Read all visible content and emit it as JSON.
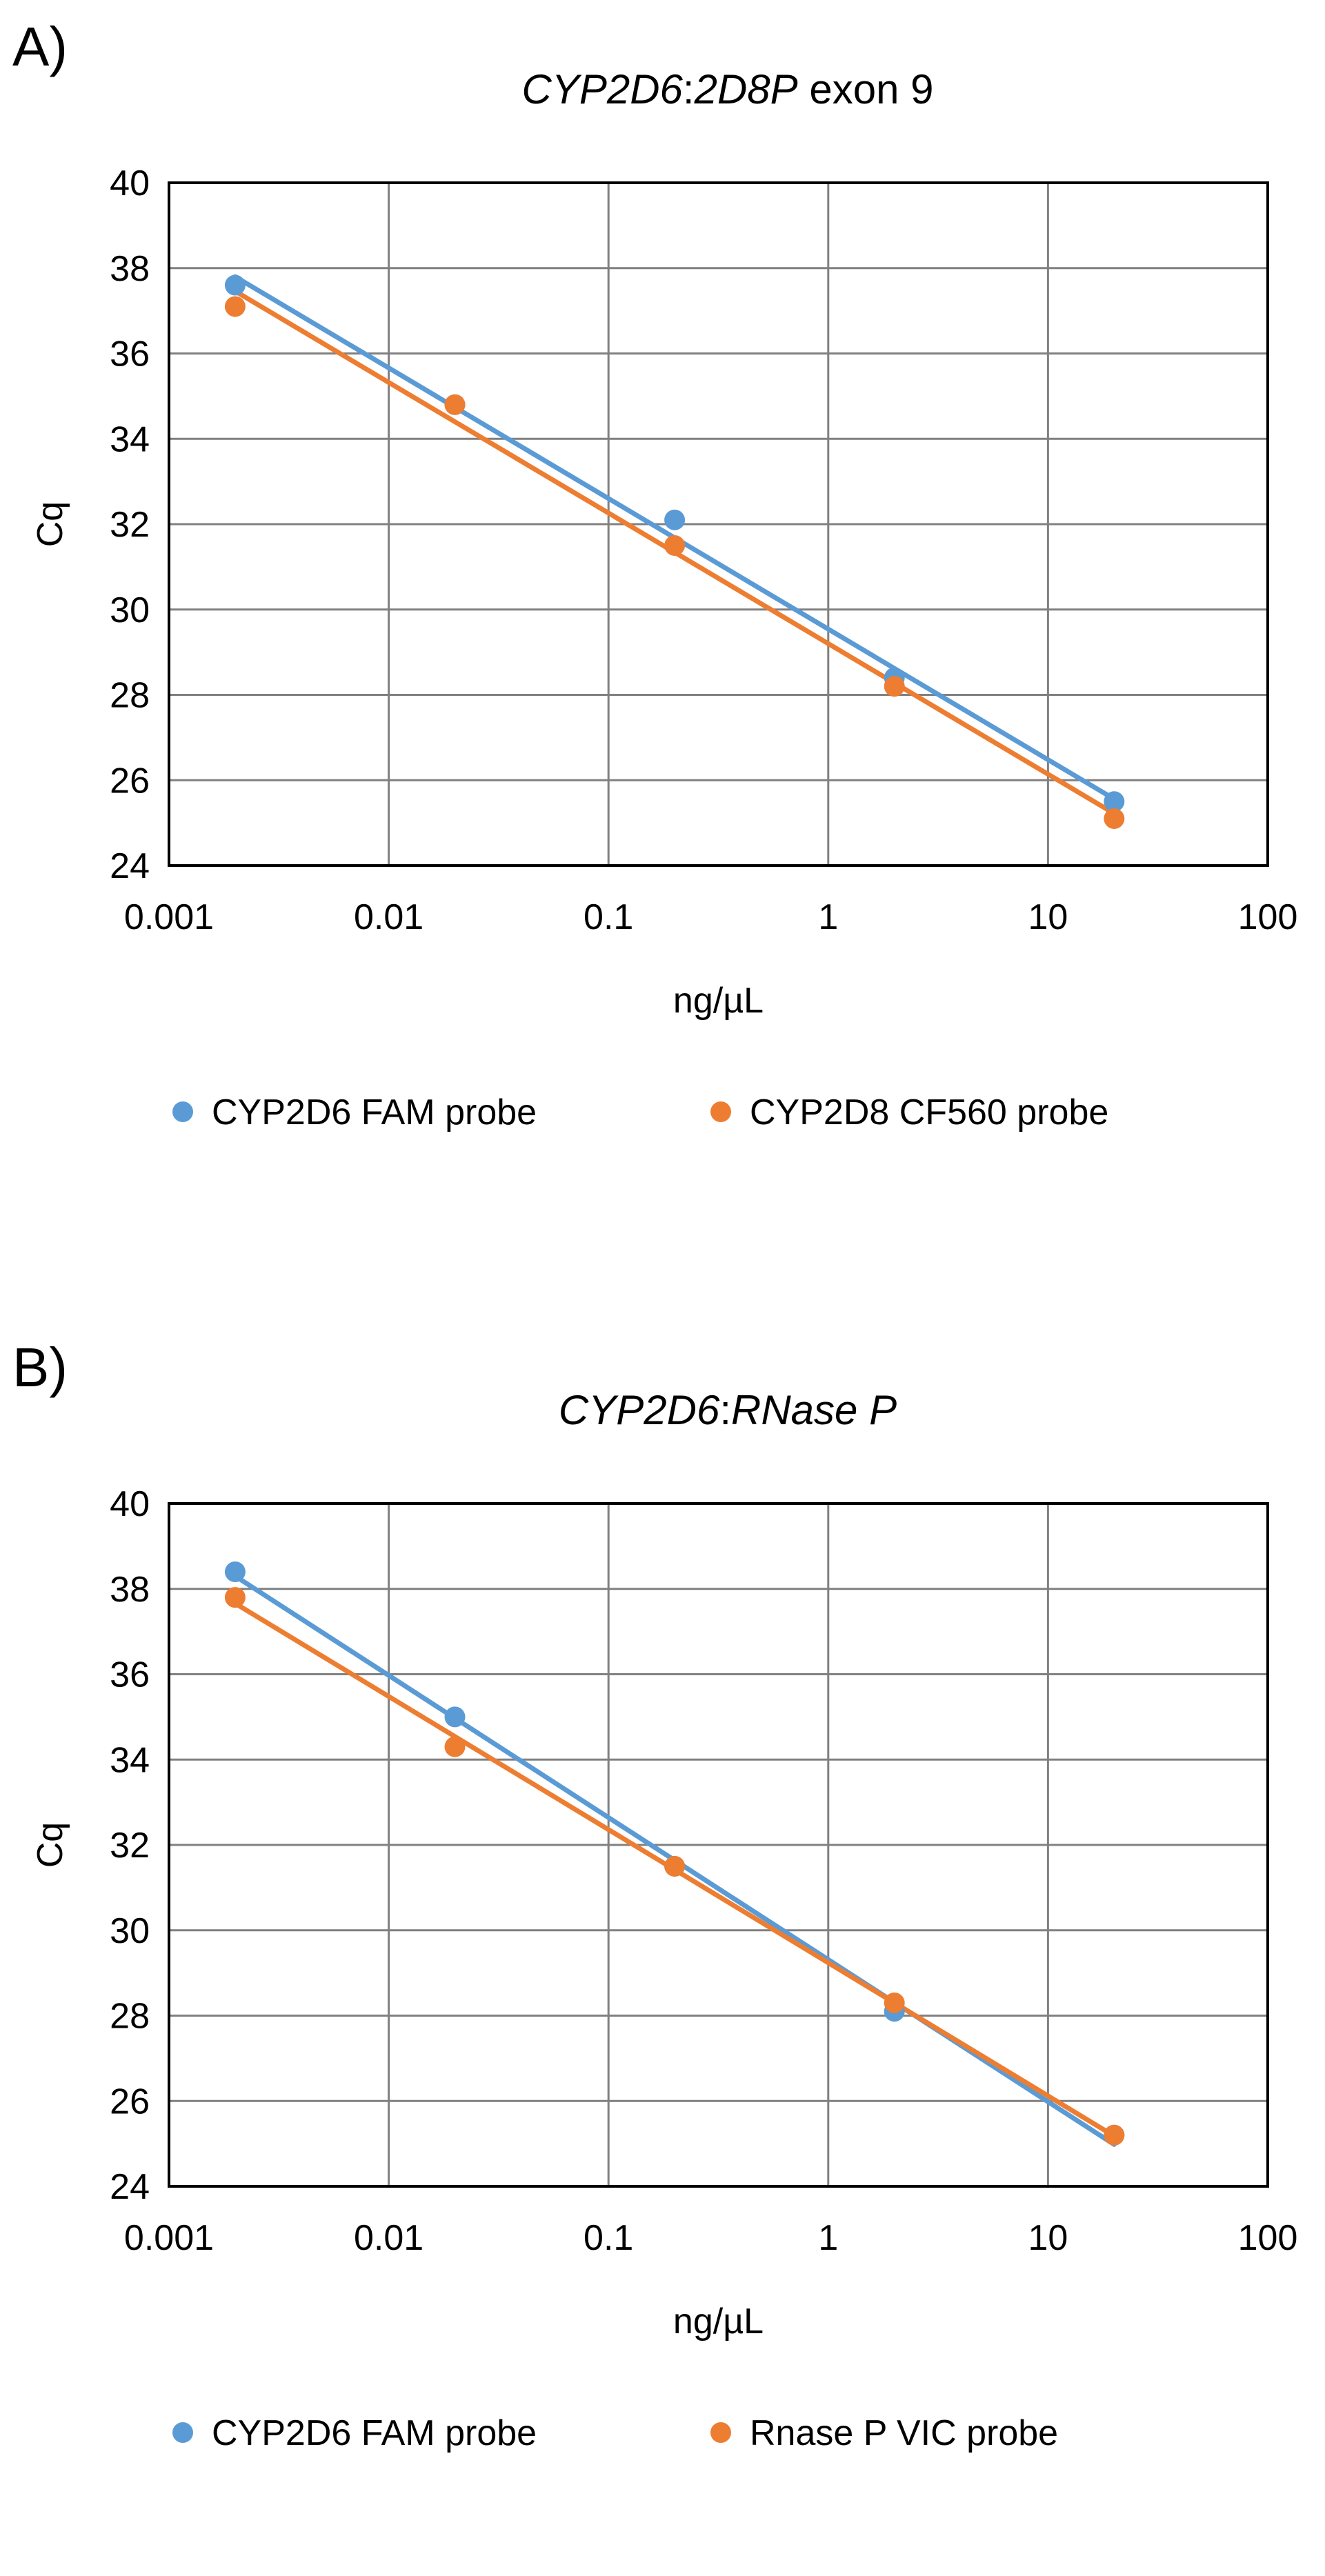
{
  "figure": {
    "panel_labels": [
      "A)",
      "B)"
    ]
  },
  "colors": {
    "series1": "#5B9BD5",
    "series2": "#ED7D31",
    "grid": "#808080",
    "plot_border": "#000000"
  },
  "chart_data": [
    {
      "type": "scatter",
      "panel_label": "A)",
      "title": "CYP2D6:2D8P exon 9",
      "title_parts": [
        {
          "text": "CYP2D6",
          "italic": true
        },
        {
          "text": ":",
          "italic": false
        },
        {
          "text": "2D8P",
          "italic": true
        },
        {
          "text": " exon 9",
          "italic": false
        }
      ],
      "xlabel": "ng/µL",
      "ylabel": "Cq",
      "xscale": "log",
      "xlim": [
        0.001,
        100
      ],
      "ylim": [
        24,
        40
      ],
      "xticks": [
        0.001,
        0.01,
        0.1,
        1,
        10,
        100
      ],
      "xtick_labels": [
        "0.001",
        "0.01",
        "0.1",
        "1",
        "10",
        "100"
      ],
      "yticks": [
        24,
        26,
        28,
        30,
        32,
        34,
        36,
        38,
        40
      ],
      "ytick_labels": [
        "24",
        "26",
        "28",
        "30",
        "32",
        "34",
        "36",
        "38",
        "40"
      ],
      "grid": true,
      "legend_position": "bottom",
      "series": [
        {
          "name": "CYP2D6 FAM probe",
          "x": [
            0.002,
            0.02,
            0.2,
            2,
            20
          ],
          "y": [
            37.6,
            34.8,
            32.1,
            28.4,
            25.5
          ],
          "trendline": "log-linear"
        },
        {
          "name": "CYP2D8 CF560 probe",
          "x": [
            0.002,
            0.02,
            0.2,
            2,
            20
          ],
          "y": [
            37.1,
            34.8,
            31.5,
            28.2,
            25.1
          ],
          "trendline": "log-linear"
        }
      ]
    },
    {
      "type": "scatter",
      "panel_label": "B)",
      "title": "CYP2D6:RNase P",
      "title_parts": [
        {
          "text": "CYP2D6",
          "italic": true
        },
        {
          "text": ":",
          "italic": false
        },
        {
          "text": "RNase P",
          "italic": true
        }
      ],
      "xlabel": "ng/µL",
      "ylabel": "Cq",
      "xscale": "log",
      "xlim": [
        0.001,
        100
      ],
      "ylim": [
        24,
        40
      ],
      "xticks": [
        0.001,
        0.01,
        0.1,
        1,
        10,
        100
      ],
      "xtick_labels": [
        "0.001",
        "0.01",
        "0.1",
        "1",
        "10",
        "100"
      ],
      "yticks": [
        24,
        26,
        28,
        30,
        32,
        34,
        36,
        38,
        40
      ],
      "ytick_labels": [
        "24",
        "26",
        "28",
        "30",
        "32",
        "34",
        "36",
        "38",
        "40"
      ],
      "grid": true,
      "legend_position": "bottom",
      "series": [
        {
          "name": "CYP2D6 FAM probe",
          "x": [
            0.002,
            0.02,
            0.2,
            2,
            20
          ],
          "y": [
            38.4,
            35.0,
            31.5,
            28.1,
            25.2
          ],
          "trendline": "log-linear"
        },
        {
          "name": "Rnase P VIC probe",
          "x": [
            0.002,
            0.02,
            0.2,
            2,
            20
          ],
          "y": [
            37.8,
            34.3,
            31.5,
            28.3,
            25.2
          ],
          "trendline": "log-linear"
        }
      ]
    }
  ]
}
